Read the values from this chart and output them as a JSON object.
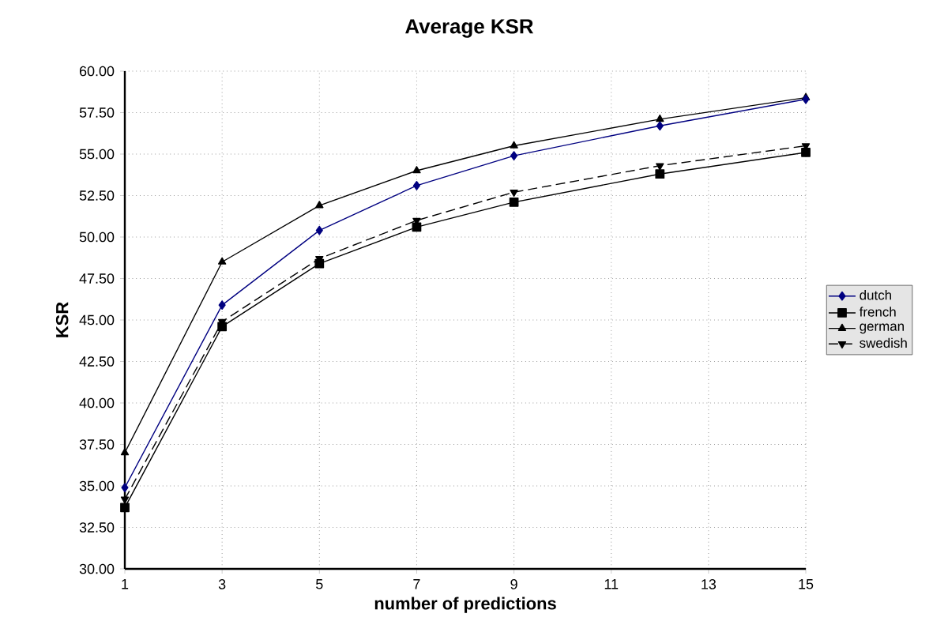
{
  "chart_data": {
    "type": "line",
    "title": "Average KSR",
    "xlabel": "number of predictions",
    "ylabel": "KSR",
    "x": [
      1,
      3,
      5,
      7,
      9,
      12,
      15
    ],
    "series": [
      {
        "name": "dutch",
        "color": "#000080",
        "marker": "diamond",
        "line_style": "solid",
        "values": [
          34.9,
          45.9,
          50.4,
          53.1,
          54.9,
          56.7,
          58.3
        ]
      },
      {
        "name": "french",
        "color": "#000000",
        "marker": "square",
        "line_style": "solid",
        "values": [
          33.7,
          44.6,
          48.4,
          50.6,
          52.1,
          53.8,
          55.1
        ]
      },
      {
        "name": "german",
        "color": "#000000",
        "marker": "triangle",
        "line_style": "solid",
        "values": [
          37.0,
          48.5,
          51.9,
          54.0,
          55.5,
          57.1,
          58.4
        ]
      },
      {
        "name": "swedish",
        "color": "#000000",
        "marker": "triangle-down",
        "line_style": "dashed",
        "values": [
          34.2,
          44.9,
          48.7,
          51.0,
          52.7,
          54.3,
          55.5
        ]
      }
    ],
    "xlim": [
      1,
      15
    ],
    "xticks": [
      1,
      3,
      5,
      7,
      9,
      11,
      13,
      15
    ],
    "ylim": [
      30,
      60
    ],
    "yticks": [
      {
        "value": 30,
        "label": "30.00"
      },
      {
        "value": 32.5,
        "label": "32.50"
      },
      {
        "value": 35,
        "label": "35.00"
      },
      {
        "value": 37.5,
        "label": "37.50"
      },
      {
        "value": 40,
        "label": "40.00"
      },
      {
        "value": 42.5,
        "label": "42.50"
      },
      {
        "value": 45,
        "label": "45.00"
      },
      {
        "value": 47.5,
        "label": "47.50"
      },
      {
        "value": 50,
        "label": "50.00"
      },
      {
        "value": 52.5,
        "label": "52.50"
      },
      {
        "value": 55,
        "label": "55.00"
      },
      {
        "value": 57.5,
        "label": "57.50"
      },
      {
        "value": 60,
        "label": "60.00"
      }
    ],
    "grid": true,
    "legend": "right"
  }
}
